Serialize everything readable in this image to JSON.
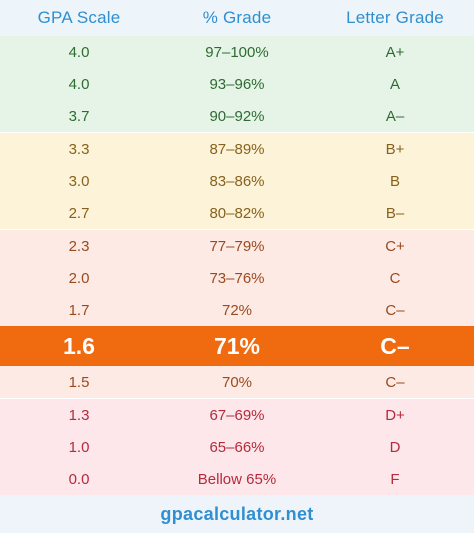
{
  "table": {
    "headers": [
      "GPA Scale",
      "% Grade",
      "Letter Grade"
    ],
    "rows": [
      {
        "gpa": "4.0",
        "pct": "97–100%",
        "letter": "A+",
        "band": "green"
      },
      {
        "gpa": "4.0",
        "pct": "93–96%",
        "letter": "A",
        "band": "green"
      },
      {
        "gpa": "3.7",
        "pct": "90–92%",
        "letter": "A–",
        "band": "green"
      },
      {
        "gpa": "3.3",
        "pct": "87–89%",
        "letter": "B+",
        "band": "yellow"
      },
      {
        "gpa": "3.0",
        "pct": "83–86%",
        "letter": "B",
        "band": "yellow"
      },
      {
        "gpa": "2.7",
        "pct": "80–82%",
        "letter": "B–",
        "band": "yellow"
      },
      {
        "gpa": "2.3",
        "pct": "77–79%",
        "letter": "C+",
        "band": "peach"
      },
      {
        "gpa": "2.0",
        "pct": "73–76%",
        "letter": "C",
        "band": "peach"
      },
      {
        "gpa": "1.7",
        "pct": "72%",
        "letter": "C–",
        "band": "peach"
      },
      {
        "gpa": "1.6",
        "pct": "71%",
        "letter": "C–",
        "band": "highlight"
      },
      {
        "gpa": "1.5",
        "pct": "70%",
        "letter": "C–",
        "band": "peach"
      },
      {
        "gpa": "1.3",
        "pct": "67–69%",
        "letter": "D+",
        "band": "pink"
      },
      {
        "gpa": "1.0",
        "pct": "65–66%",
        "letter": "D",
        "band": "pink"
      },
      {
        "gpa": "0.0",
        "pct": "Bellow 65%",
        "letter": "F",
        "band": "pink"
      }
    ]
  },
  "footer": {
    "site": "gpacalculator.net"
  },
  "colors": {
    "header_text": "#2f8fd0",
    "highlight": "#f06a10",
    "green_band": "#e5f4e6",
    "yellow_band": "#fdf3d9",
    "peach_band": "#fdeae4",
    "pink_band": "#fde7ea"
  }
}
